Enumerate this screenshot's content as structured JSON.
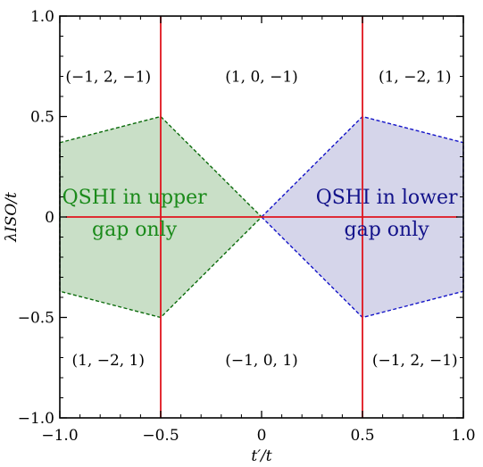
{
  "chart_data": {
    "type": "area",
    "xlabel": "t′/t",
    "ylabel": "λISO/t",
    "xlim": [
      -1.0,
      1.0
    ],
    "ylim": [
      -1.0,
      1.0
    ],
    "grid": false,
    "xticks": [
      "−1.0",
      "−0.5",
      "0",
      "0.5",
      "1.0"
    ],
    "yticks": [
      "−1.0",
      "−0.5",
      "0",
      "0.5",
      "1.0"
    ],
    "regions": [
      {
        "id": "upper",
        "fill": "#c9dfc7",
        "stroke": "#0b6b0b",
        "points": [
          [
            -1.0,
            0.37
          ],
          [
            -0.5,
            0.5
          ],
          [
            0.0,
            0.0
          ],
          [
            -0.5,
            -0.5
          ],
          [
            -1.0,
            -0.37
          ]
        ]
      },
      {
        "id": "lower",
        "fill": "#d5d5ea",
        "stroke": "#1414c8",
        "points": [
          [
            0.0,
            0.0
          ],
          [
            0.5,
            0.5
          ],
          [
            1.0,
            0.37
          ],
          [
            1.0,
            -0.37
          ],
          [
            0.5,
            -0.5
          ]
        ]
      }
    ],
    "red_lines": [
      {
        "x": -0.5,
        "y1": -1.0,
        "y2": 1.0
      },
      {
        "x": 0.5,
        "y1": -1.0,
        "y2": 1.0
      },
      {
        "x1": -0.97,
        "x2": 0.97,
        "y": 0.0
      }
    ],
    "region_labels": [
      {
        "text": "(−1, 2, −1)",
        "x": -0.76,
        "y": 0.7
      },
      {
        "text": "(1, 0, −1)",
        "x": 0.0,
        "y": 0.7
      },
      {
        "text": "(1, −2, 1)",
        "x": 0.76,
        "y": 0.7
      },
      {
        "text": "(1, −2, 1)",
        "x": -0.76,
        "y": -0.71
      },
      {
        "text": "(−1, 0, 1)",
        "x": 0.0,
        "y": -0.71
      },
      {
        "text": "(−1, 2, −1)",
        "x": 0.76,
        "y": -0.71
      }
    ],
    "annotations": [
      {
        "lines": [
          "QSHI in upper",
          "gap only"
        ],
        "x": -0.63,
        "y": 0.05,
        "color": "#1a8a1a"
      },
      {
        "lines": [
          "QSHI in lower",
          "gap only"
        ],
        "x": 0.62,
        "y": 0.05,
        "color": "#12128a"
      }
    ],
    "colors": {
      "red_line": "#e0141e",
      "axis": "#000000"
    }
  }
}
